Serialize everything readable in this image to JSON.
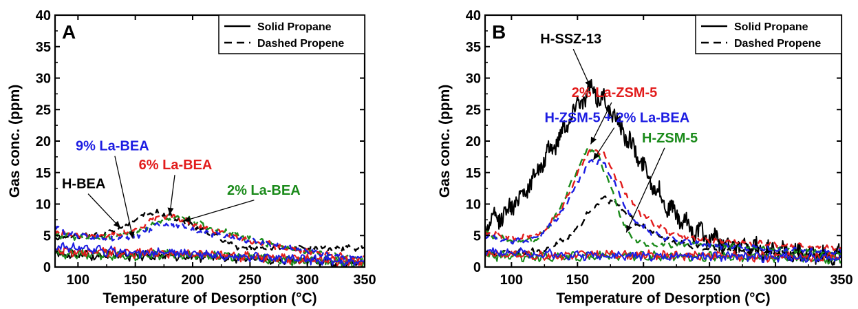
{
  "chart_data": [
    {
      "panel_letter": "A",
      "type": "line",
      "xlabel": "Temperature of Desorption (°C)",
      "ylabel": "Gas conc. (ppm)",
      "xlim": [
        80,
        350
      ],
      "ylim": [
        0,
        40
      ],
      "xticks": [
        100,
        150,
        200,
        250,
        300,
        350
      ],
      "yticks": [
        0,
        5,
        10,
        15,
        20,
        25,
        30,
        35,
        40
      ],
      "grid": false,
      "legend_position": "top-right",
      "legend": [
        {
          "label": "Solid Propane",
          "style": "solid"
        },
        {
          "label": "Dashed Propene",
          "style": "dashed"
        }
      ],
      "series": [
        {
          "name": "H-BEA",
          "color": "#000000",
          "gas": "propane",
          "style": "solid",
          "x": [
            80,
            100,
            125,
            150,
            175,
            200,
            225,
            250,
            275,
            300,
            325,
            350
          ],
          "y": [
            2.3,
            1.9,
            1.8,
            1.7,
            1.9,
            1.7,
            1.5,
            1.3,
            1.1,
            1.0,
            0.8,
            0.6
          ]
        },
        {
          "name": "H-BEA",
          "color": "#000000",
          "gas": "propene",
          "style": "dashed",
          "x": [
            80,
            100,
            120,
            140,
            160,
            170,
            180,
            200,
            220,
            240
          ],
          "y": [
            4.5,
            5.0,
            5.2,
            6.5,
            8.5,
            8.6,
            8.2,
            6.5,
            5.0,
            3.0
          ]
        },
        {
          "name": "2% La-BEA",
          "color": "#1a8a1a",
          "gas": "propane",
          "style": "solid",
          "x": [
            80,
            100,
            125,
            150,
            175,
            200,
            225,
            250,
            275,
            300,
            325,
            350
          ],
          "y": [
            2.2,
            2.1,
            1.9,
            1.8,
            2.0,
            1.9,
            1.7,
            1.5,
            1.2,
            1.0,
            0.8,
            0.6
          ]
        },
        {
          "name": "2% La-BEA",
          "color": "#1a8a1a",
          "gas": "propene",
          "style": "dashed",
          "x": [
            80,
            100,
            125,
            150,
            175,
            190,
            210,
            240,
            260,
            280,
            300,
            325,
            350
          ],
          "y": [
            5.0,
            4.7,
            4.8,
            5.5,
            7.5,
            8.0,
            6.5,
            5.0,
            4.0,
            3.0,
            2.5,
            1.8,
            1.2
          ]
        },
        {
          "name": "6% La-BEA",
          "color": "#e21c1c",
          "gas": "propane",
          "style": "solid",
          "x": [
            80,
            100,
            125,
            150,
            175,
            200,
            225,
            250,
            275,
            300,
            325,
            350
          ],
          "y": [
            2.6,
            2.4,
            2.3,
            2.1,
            2.3,
            2.0,
            1.8,
            1.6,
            1.3,
            1.2,
            1.0,
            0.8
          ]
        },
        {
          "name": "6% La-BEA",
          "color": "#e21c1c",
          "gas": "propene",
          "style": "dashed",
          "x": [
            80,
            100,
            125,
            150,
            165,
            180,
            200,
            225,
            250,
            275,
            300,
            325,
            350
          ],
          "y": [
            5.5,
            5.0,
            4.8,
            5.7,
            7.8,
            8.2,
            6.8,
            5.5,
            4.2,
            3.3,
            2.5,
            1.8,
            1.2
          ]
        },
        {
          "name": "9% La-BEA",
          "color": "#1c1ce2",
          "gas": "propane",
          "style": "solid",
          "x": [
            80,
            100,
            125,
            150,
            175,
            200,
            225,
            250,
            275,
            300,
            325,
            350
          ],
          "y": [
            3.2,
            3.0,
            2.5,
            2.2,
            2.3,
            2.1,
            1.9,
            1.6,
            1.3,
            1.1,
            0.9,
            0.7
          ]
        },
        {
          "name": "9% La-BEA",
          "color": "#1c1ce2",
          "gas": "propene",
          "style": "dashed",
          "x": [
            80,
            90,
            110,
            130,
            150,
            170,
            190,
            210,
            240,
            270,
            300,
            325,
            350
          ],
          "y": [
            6.5,
            5.2,
            4.8,
            4.5,
            4.8,
            6.8,
            6.5,
            5.5,
            4.5,
            3.5,
            2.5,
            1.8,
            1.2
          ]
        }
      ],
      "annotations": [
        {
          "text": "9% La-BEA",
          "color": "#1c1ce2",
          "x": 130,
          "y": 18.5,
          "arrow_x": 148,
          "arrow_y": 4.5
        },
        {
          "text": "H-BEA",
          "color": "#000000",
          "x": 105,
          "y": 12.5,
          "arrow_x": 137,
          "arrow_y": 6.2
        },
        {
          "text": "6% La-BEA",
          "color": "#e21c1c",
          "x": 185,
          "y": 15.5,
          "arrow_x": 180,
          "arrow_y": 8.3
        },
        {
          "text": "2% La-BEA",
          "color": "#1a8a1a",
          "x": 262,
          "y": 11.5,
          "arrow_x": 192,
          "arrow_y": 7.3
        }
      ]
    },
    {
      "panel_letter": "B",
      "type": "line",
      "xlabel": "Temperature of Desorption (°C)",
      "ylabel": "Gas conc. (ppm)",
      "xlim": [
        80,
        350
      ],
      "ylim": [
        0,
        40
      ],
      "xticks": [
        100,
        150,
        200,
        250,
        300,
        350
      ],
      "yticks": [
        0,
        5,
        10,
        15,
        20,
        25,
        30,
        35,
        40
      ],
      "grid": false,
      "legend_position": "top-right",
      "legend": [
        {
          "label": "Solid Propane",
          "style": "solid"
        },
        {
          "label": "Dashed Propene",
          "style": "dashed"
        }
      ],
      "series": [
        {
          "name": "H-SSZ-13",
          "color": "#000000",
          "gas": "propane",
          "style": "solid",
          "x": [
            80,
            95,
            110,
            125,
            140,
            150,
            160,
            170,
            185,
            200,
            215,
            230,
            250,
            275,
            300,
            325,
            350
          ],
          "y": [
            6.5,
            8.5,
            12.0,
            17.0,
            22.0,
            26.0,
            28.0,
            26.5,
            21.5,
            16.0,
            10.5,
            7.0,
            4.5,
            3.0,
            2.4,
            2.0,
            1.8
          ]
        },
        {
          "name": "H-SSZ-13",
          "color": "#000000",
          "gas": "propene",
          "style": "dashed",
          "x": [
            80,
            100,
            125,
            145,
            160,
            170,
            180,
            195,
            215,
            240,
            275,
            300,
            350
          ],
          "y": [
            2.0,
            2.2,
            2.6,
            5.0,
            9.0,
            11.0,
            10.0,
            7.0,
            4.5,
            3.2,
            2.5,
            2.2,
            2.0
          ]
        },
        {
          "name": "H-ZSM-5",
          "color": "#1a8a1a",
          "gas": "propane",
          "style": "solid",
          "x": [
            80,
            125,
            175,
            225,
            275,
            350
          ],
          "y": [
            1.8,
            1.6,
            1.8,
            1.7,
            1.5,
            1.3
          ]
        },
        {
          "name": "H-ZSM-5",
          "color": "#1a8a1a",
          "gas": "propene",
          "style": "dashed",
          "x": [
            80,
            100,
            120,
            135,
            148,
            158,
            165,
            175,
            185,
            195,
            205,
            220,
            245,
            300,
            350
          ],
          "y": [
            5.5,
            4.0,
            4.5,
            8.5,
            14.5,
            19.0,
            18.0,
            13.0,
            6.5,
            4.0,
            3.6,
            3.5,
            3.6,
            2.8,
            2.2
          ]
        },
        {
          "name": "2% La-ZSM-5",
          "color": "#e21c1c",
          "gas": "propane",
          "style": "solid",
          "x": [
            80,
            125,
            175,
            225,
            275,
            350
          ],
          "y": [
            2.2,
            1.8,
            2.0,
            1.9,
            1.7,
            1.5
          ]
        },
        {
          "name": "2% La-ZSM-5",
          "color": "#e21c1c",
          "gas": "propene",
          "style": "dashed",
          "x": [
            80,
            100,
            120,
            138,
            150,
            160,
            170,
            180,
            195,
            210,
            225,
            250,
            300,
            350
          ],
          "y": [
            5.5,
            4.5,
            5.0,
            9.0,
            15.0,
            18.8,
            18.0,
            14.0,
            9.0,
            6.5,
            5.0,
            4.2,
            3.5,
            3.0
          ]
        },
        {
          "name": "H-ZSM-5 + 2% La-BEA",
          "color": "#1c1ce2",
          "gas": "propane",
          "style": "solid",
          "x": [
            80,
            125,
            175,
            225,
            275,
            350
          ],
          "y": [
            2.5,
            2.0,
            1.8,
            1.7,
            1.6,
            1.4
          ]
        },
        {
          "name": "H-ZSM-5 + 2% La-BEA",
          "color": "#1c1ce2",
          "gas": "propene",
          "style": "dashed",
          "x": [
            80,
            100,
            120,
            138,
            150,
            160,
            170,
            180,
            190,
            205,
            225,
            250,
            300,
            350
          ],
          "y": [
            5.0,
            4.0,
            4.6,
            8.5,
            13.5,
            17.0,
            16.5,
            12.5,
            8.0,
            5.5,
            4.2,
            3.5,
            2.8,
            2.3
          ]
        }
      ],
      "annotations": [
        {
          "text": "H-SSZ-13",
          "color": "#000000",
          "x": 145,
          "y": 35.5,
          "arrow_x": 160,
          "arrow_y": 28.5
        },
        {
          "text": "2% La-ZSM-5",
          "color": "#e21c1c",
          "x": 178,
          "y": 27.0,
          "arrow_x": 160,
          "arrow_y": 19.5
        },
        {
          "text": "H-ZSM-5 + 2% La-BEA",
          "color": "#1c1ce2",
          "x": 180,
          "y": 23.0,
          "arrow_x": 162,
          "arrow_y": 17.0
        },
        {
          "text": "H-ZSM-5",
          "color": "#1a8a1a",
          "x": 220,
          "y": 19.8,
          "arrow_x": 187,
          "arrow_y": 5.5
        }
      ]
    }
  ]
}
